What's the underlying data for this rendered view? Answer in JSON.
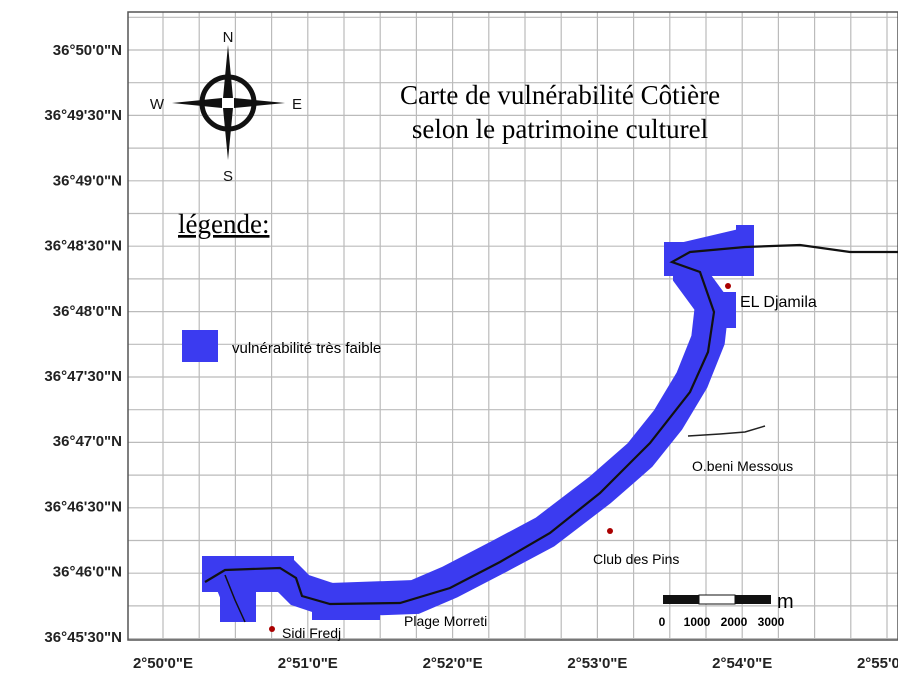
{
  "title": [
    "Carte de vulnérabilité Côtière",
    "selon le patrimoine culturel"
  ],
  "legend": {
    "title": "légende:",
    "items": [
      "vulnérabilité très faible"
    ]
  },
  "compass": {
    "north": "N",
    "south": "S",
    "east": "E",
    "west": "W"
  },
  "places": [
    "EL Djamila",
    "O.beni Messous",
    "Club des Pins",
    "Plage Morreti",
    "Sidi Fredj"
  ],
  "scale": {
    "labels": [
      "0",
      "1000",
      "2000",
      "3000"
    ],
    "unit": "m"
  },
  "latitude_labels": [
    "36°50'0\"N",
    "36°49'30\"N",
    "36°49'0\"N",
    "36°48'30\"N",
    "36°48'0\"N",
    "36°47'30\"N",
    "36°47'0\"N",
    "36°46'30\"N",
    "36°46'0\"N",
    "36°45'30\"N"
  ],
  "longitude_labels": [
    "2°50'0\"E",
    "2°51'0\"E",
    "2°52'0\"E",
    "2°53'0\"E",
    "2°54'0\"E",
    "2°55'0\"E"
  ]
}
